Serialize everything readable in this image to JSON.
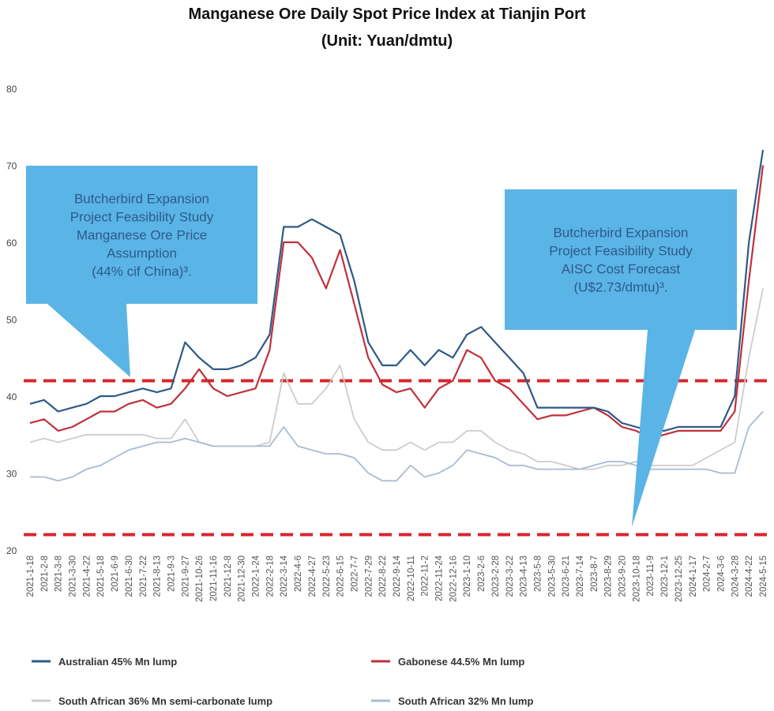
{
  "chart_data": {
    "type": "line",
    "title": "Manganese Ore Daily Spot Price Index at Tianjin Port",
    "subtitle": "(Unit: Yuan/dmtu)",
    "xlabel": "",
    "ylabel": "",
    "ylim": [
      20,
      80
    ],
    "yticks": [
      20,
      30,
      40,
      50,
      60,
      70,
      80
    ],
    "grid": false,
    "legend_position": "bottom",
    "x": [
      "2021-1-18",
      "2021-2-8",
      "2021-3-8",
      "2021-3-30",
      "2021-4-22",
      "2021-5-18",
      "2021-6-9",
      "2021-6-30",
      "2021-7-22",
      "2021-8-13",
      "2021-9-3",
      "2021-9-27",
      "2021-10-26",
      "2021-11-16",
      "2021-12-8",
      "2021-12-30",
      "2022-1-24",
      "2022-2-18",
      "2022-3-14",
      "2022-4-6",
      "2022-4-27",
      "2022-5-23",
      "2022-6-15",
      "2022-7-7",
      "2022-7-29",
      "2022-8-22",
      "2022-9-14",
      "2022-10-11",
      "2022-11-2",
      "2022-11-24",
      "2022-12-16",
      "2023-1-10",
      "2023-2-6",
      "2023-2-28",
      "2023-3-22",
      "2023-4-13",
      "2023-5-8",
      "2023-5-30",
      "2023-6-21",
      "2023-7-14",
      "2023-8-7",
      "2023-8-29",
      "2023-9-20",
      "2023-10-18",
      "2023-11-9",
      "2023-12-1",
      "2023-12-25",
      "2024-1-17",
      "2024-2-7",
      "2024-3-6",
      "2024-3-28",
      "2024-4-22",
      "2024-5-15"
    ],
    "series": [
      {
        "name": "Australian 45% Mn lump",
        "color": "#2E5A87",
        "values": [
          39,
          39.5,
          38,
          38.5,
          39,
          40,
          40,
          40.5,
          41,
          40.5,
          41,
          47,
          45,
          43.5,
          43.5,
          44,
          45,
          48,
          62,
          62,
          63,
          62,
          61,
          55,
          47,
          44,
          44,
          46,
          44,
          46,
          45,
          48,
          49,
          47,
          45,
          43,
          38.5,
          38.5,
          38.5,
          38.5,
          38.5,
          38,
          36.5,
          36,
          35.5,
          35.5,
          36,
          36,
          36,
          36,
          40,
          60,
          72
        ]
      },
      {
        "name": "Gabonese 44.5% Mn lump",
        "color": "#C0313B",
        "values": [
          36.5,
          37,
          35.5,
          36,
          37,
          38,
          38,
          39,
          39.5,
          38.5,
          39,
          41,
          43.5,
          41,
          40,
          40.5,
          41,
          46,
          60,
          60,
          58,
          54,
          59,
          52,
          45,
          41.5,
          40.5,
          41,
          38.5,
          41,
          42,
          46,
          45,
          42,
          41,
          39,
          37,
          37.5,
          37.5,
          38,
          38.5,
          37.5,
          36,
          35.5,
          34.5,
          35,
          35.5,
          35.5,
          35.5,
          35.5,
          38,
          55,
          70
        ]
      },
      {
        "name": "South African 36% Mn semi-carbonate lump",
        "color": "#CDCDCD",
        "values": [
          34,
          34.5,
          34,
          34.5,
          35,
          35,
          35,
          35,
          35,
          34.5,
          34.5,
          37,
          34,
          33.5,
          33.5,
          33.5,
          33.5,
          34,
          43,
          39,
          39,
          41,
          44,
          37,
          34,
          33,
          33,
          34,
          33,
          34,
          34,
          35.5,
          35.5,
          34,
          33,
          32.5,
          31.5,
          31.5,
          31,
          30.5,
          30.5,
          31,
          31,
          31.5,
          31,
          31,
          31,
          31,
          32,
          33,
          34,
          45,
          54
        ]
      },
      {
        "name": "South African 32% Mn lump",
        "color": "#A9BBD0",
        "values": [
          29.5,
          29.5,
          29,
          29.5,
          30.5,
          31,
          32,
          33,
          33.5,
          34,
          34,
          34.5,
          34,
          33.5,
          33.5,
          33.5,
          33.5,
          33.5,
          36,
          33.5,
          33,
          32.5,
          32.5,
          32,
          30,
          29,
          29,
          31,
          29.5,
          30,
          31,
          33,
          32.5,
          32,
          31,
          31,
          30.5,
          30.5,
          30.5,
          30.5,
          31,
          31.5,
          31.5,
          31,
          30.5,
          30.5,
          30.5,
          30.5,
          30.5,
          30,
          30,
          36,
          38
        ]
      }
    ],
    "reference_lines": [
      {
        "value": 42,
        "color": "#D7262B",
        "style": "dashed"
      },
      {
        "value": 22,
        "color": "#D7262B",
        "style": "dashed"
      }
    ],
    "annotations": [
      {
        "lines": [
          "Butcherbird Expansion",
          "Project Feasibility Study",
          "Manganese Ore Price",
          "Assumption",
          "(44% cif China)³."
        ],
        "points_to": 42
      },
      {
        "lines": [
          "Butcherbird Expansion",
          "Project Feasibility Study",
          "AISC Cost Forecast",
          "(U$2.73/dmtu)³."
        ],
        "points_to": 22
      }
    ]
  }
}
